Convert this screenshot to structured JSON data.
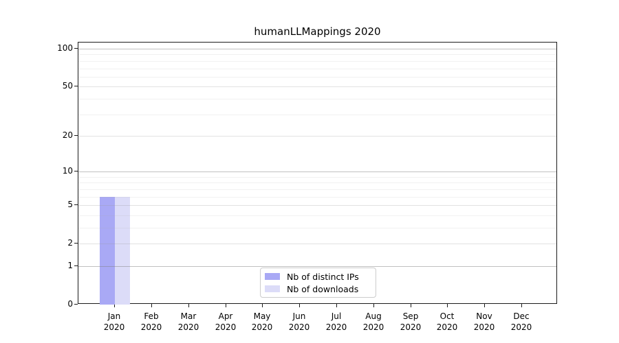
{
  "chart_data": {
    "type": "bar",
    "title": "humanLLMappings 2020",
    "categories": [
      [
        "Jan",
        "2020"
      ],
      [
        "Feb",
        "2020"
      ],
      [
        "Mar",
        "2020"
      ],
      [
        "Apr",
        "2020"
      ],
      [
        "May",
        "2020"
      ],
      [
        "Jun",
        "2020"
      ],
      [
        "Jul",
        "2020"
      ],
      [
        "Aug",
        "2020"
      ],
      [
        "Sep",
        "2020"
      ],
      [
        "Oct",
        "2020"
      ],
      [
        "Nov",
        "2020"
      ],
      [
        "Dec",
        "2020"
      ]
    ],
    "series": [
      {
        "name": "Nb of distinct IPs",
        "color": "#a9a9f5",
        "values": [
          6,
          0,
          0,
          0,
          0,
          0,
          0,
          0,
          0,
          0,
          0,
          0
        ]
      },
      {
        "name": "Nb of downloads",
        "color": "#dcdcf8",
        "values": [
          6,
          0,
          0,
          0,
          0,
          0,
          0,
          0,
          0,
          0,
          0,
          0
        ]
      }
    ],
    "y_axis": {
      "scale": "log1p",
      "ticks": [
        0,
        1,
        2,
        5,
        10,
        20,
        50,
        100
      ],
      "major_gridlines": [
        1,
        10,
        100
      ],
      "mid_gridlines": [
        2,
        5,
        20,
        50
      ],
      "minor_gridlines": [
        3,
        4,
        6,
        7,
        8,
        9,
        30,
        40,
        60,
        70,
        80,
        90
      ],
      "ymax": 112
    },
    "legend_position": "bottom-center",
    "grid": true,
    "colors": {
      "spine": "#1a1a1a",
      "grid_major": "#c5c5c5",
      "grid_minor": "#f0f0f0",
      "background": "#ffffff"
    }
  }
}
